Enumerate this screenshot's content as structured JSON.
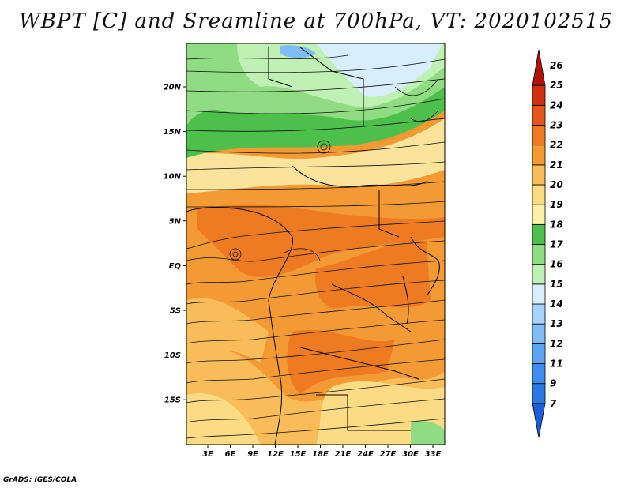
{
  "title": "WBPT [C] and Sreamline at 700hPa, VT: 2020102515",
  "footer": "GrADS: IGES/COLA",
  "map": {
    "lon_labels": [
      "3E",
      "6E",
      "9E",
      "12E",
      "15E",
      "18E",
      "21E",
      "24E",
      "27E",
      "30E",
      "33E"
    ],
    "lat_labels": [
      "20N",
      "15N",
      "10N",
      "5N",
      "EQ",
      "5S",
      "10S",
      "15S"
    ],
    "lon_range": [
      0,
      35
    ],
    "lat_range": [
      -20,
      25
    ],
    "variable": "wet-bulb potential temperature",
    "overlay": "streamlines"
  },
  "colorbar": {
    "labels": [
      "7",
      "9",
      "11",
      "12",
      "13",
      "14",
      "15",
      "16",
      "17",
      "18",
      "19",
      "20",
      "21",
      "22",
      "23",
      "24",
      "25",
      "26"
    ],
    "colors": [
      "#1a5fd6",
      "#2a78e4",
      "#3c8ef0",
      "#5aa6f5",
      "#7fbdf8",
      "#a6d3fa",
      "#d8eefc",
      "#bff0b4",
      "#8fdc82",
      "#4dbf4b",
      "#fcf0a8",
      "#fbdc84",
      "#f8bc58",
      "#f39a35",
      "#ee7a22",
      "#e5561a",
      "#d0300f",
      "#b11208"
    ]
  },
  "colors": {
    "green": "#5cc85a",
    "light_green": "#a6e49a",
    "yellow": "#fae49c",
    "light_orange": "#f7b75c",
    "orange": "#f18f31",
    "dark_orange": "#ea6a23"
  }
}
